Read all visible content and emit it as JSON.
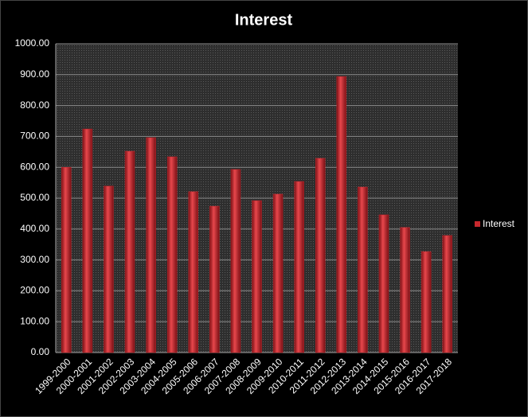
{
  "chart_data": {
    "type": "bar",
    "title": "Interest",
    "categories": [
      "1999-2000",
      "2000-2001",
      "2001-2002",
      "2002-2003",
      "2003-2004",
      "2004-2005",
      "2005-2006",
      "2006-2007",
      "2007-2008",
      "2008-2009",
      "2009-2010",
      "2010-2011",
      "2011-2012",
      "2012-2013",
      "2013-2014",
      "2014-2015",
      "2015-2016",
      "2016-2017",
      "2017-2018"
    ],
    "series": [
      {
        "name": "Interest",
        "color": "#c8282d",
        "values": [
          600,
          724,
          539,
          652,
          696,
          634,
          521,
          474,
          593,
          492,
          513,
          554,
          629,
          894,
          536,
          446,
          405,
          327,
          379
        ]
      }
    ],
    "ylim": [
      0,
      1000
    ],
    "yticks": [
      {
        "value": 0,
        "label": "0.00"
      },
      {
        "value": 100,
        "label": "100.00"
      },
      {
        "value": 200,
        "label": "200.00"
      },
      {
        "value": 300,
        "label": "300.00"
      },
      {
        "value": 400,
        "label": "400.00"
      },
      {
        "value": 500,
        "label": "500.00"
      },
      {
        "value": 600,
        "label": "600.00"
      },
      {
        "value": 700,
        "label": "700.00"
      },
      {
        "value": 800,
        "label": "800.00"
      },
      {
        "value": 900,
        "label": "900.00"
      },
      {
        "value": 1000,
        "label": "1000.00"
      }
    ],
    "grid": true,
    "legend": "right"
  }
}
